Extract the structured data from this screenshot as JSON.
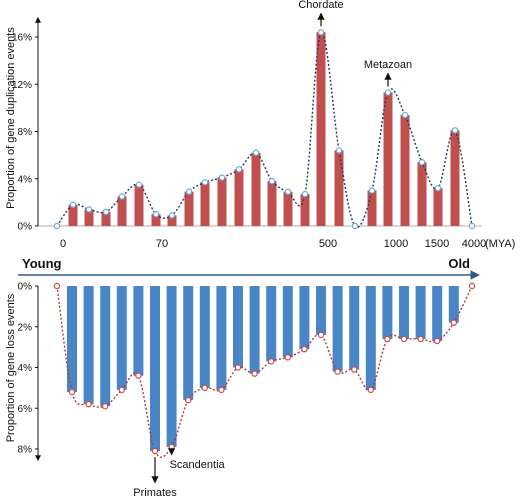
{
  "chart_data": [
    {
      "type": "bar",
      "ylabel": "Proportion of gene duplication events",
      "y_unit": "%",
      "ylim": [
        0,
        18
      ],
      "yticks": [
        "0%",
        "4%",
        "8%",
        "12%",
        "16%"
      ],
      "ytick_values": [
        0,
        4,
        8,
        12,
        16
      ],
      "values": [
        1.8,
        1.4,
        1.2,
        2.5,
        3.5,
        1.0,
        0.9,
        2.9,
        3.7,
        4.1,
        4.8,
        6.2,
        3.8,
        2.9,
        2.7,
        16.4,
        6.4,
        3.0,
        11.3,
        9.4,
        5.4,
        3.2,
        8.1
      ],
      "trend_values": [
        0,
        1.8,
        1.4,
        1.2,
        2.5,
        3.5,
        1.0,
        0.9,
        2.9,
        3.7,
        4.1,
        4.8,
        6.2,
        3.8,
        2.9,
        2.7,
        16.4,
        6.4,
        0,
        3.0,
        11.3,
        9.4,
        5.4,
        3.2,
        8.1,
        0
      ],
      "bar_color": "#c0504d",
      "trend_color": "#1f3b5a",
      "marker_color": "#6fa8dc",
      "x_axis": {
        "tick_labels": [
          "0",
          "70",
          "500",
          "1000",
          "1500",
          "4000"
        ],
        "unit": "(MYA)",
        "start_label": "Young",
        "end_label": "Old"
      },
      "annotations": [
        {
          "text": "Chordate",
          "bar": 15
        },
        {
          "text": "Metazoan",
          "bar": 18
        }
      ]
    },
    {
      "type": "bar",
      "ylabel": "Proportion of gene loss events",
      "y_unit": "%",
      "ylim": [
        0,
        9
      ],
      "inverted": true,
      "yticks": [
        "0%",
        "2%",
        "4%",
        "6%",
        "8%"
      ],
      "ytick_values": [
        0,
        2,
        4,
        6,
        8
      ],
      "values": [
        5.2,
        5.8,
        5.9,
        5.1,
        4.4,
        8.1,
        7.9,
        5.6,
        5.0,
        5.1,
        4.0,
        4.3,
        3.7,
        3.5,
        3.1,
        2.4,
        4.2,
        4.1,
        5.1,
        2.6,
        2.6,
        2.6,
        2.7,
        1.8
      ],
      "trend_values": [
        0,
        5.2,
        5.8,
        5.9,
        5.1,
        4.4,
        8.1,
        7.9,
        5.6,
        5.0,
        5.1,
        4.0,
        4.3,
        3.7,
        3.5,
        3.1,
        2.4,
        4.2,
        4.1,
        5.1,
        2.6,
        2.6,
        2.6,
        2.7,
        1.8,
        0
      ],
      "bar_color": "#4a86c5",
      "trend_color": "#b03a3a",
      "marker_color": "#d04a4a",
      "annotations": [
        {
          "text": "Primates",
          "bar": 5
        },
        {
          "text": "Scandentia",
          "bar": 6
        }
      ]
    }
  ]
}
